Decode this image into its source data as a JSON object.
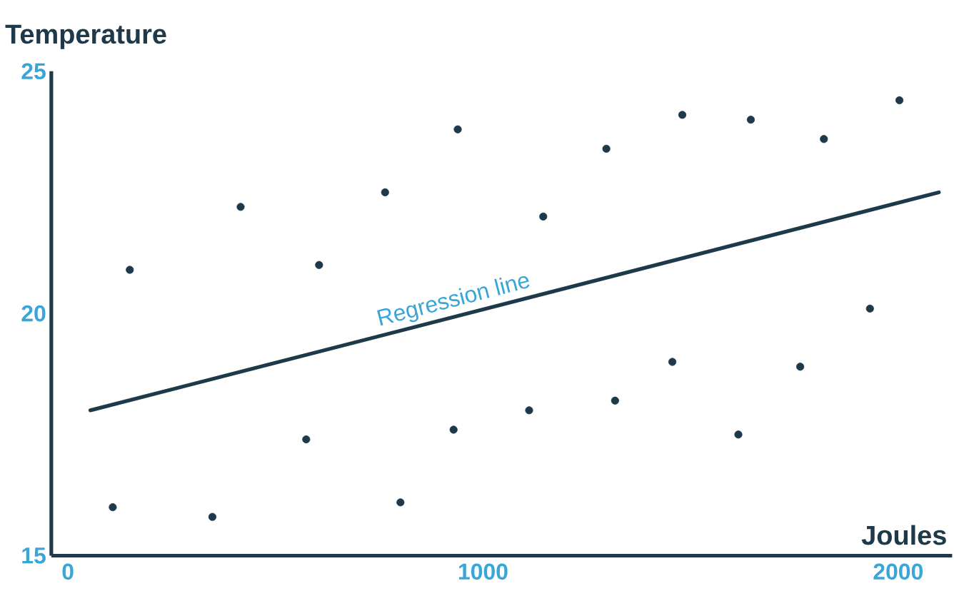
{
  "chart_data": {
    "type": "scatter",
    "xlabel": "Joules",
    "ylabel": "Temperature",
    "xlim": [
      -40,
      2130
    ],
    "ylim": [
      15,
      25
    ],
    "xticks": [
      0,
      1000,
      2000
    ],
    "yticks": [
      15,
      20,
      25
    ],
    "grid": false,
    "series": [
      {
        "marker": "circle",
        "color": "#1e3a4a",
        "x": [
          108,
          149,
          348,
          416,
          574,
          605,
          764,
          801,
          929,
          939,
          1111,
          1145,
          1297,
          1318,
          1456,
          1480,
          1615,
          1645,
          1764,
          1821,
          1932,
          2003
        ],
        "values": [
          16.0,
          20.9,
          15.8,
          22.2,
          17.4,
          21.0,
          22.5,
          16.1,
          17.6,
          23.8,
          18.0,
          22.0,
          23.4,
          18.2,
          19.0,
          24.1,
          17.5,
          24.0,
          18.9,
          23.6,
          20.1,
          24.4
        ]
      },
      {
        "type": "line",
        "color": "#1e3a4a",
        "marker": "none",
        "line_style": "solid",
        "x": [
          54,
          2098
        ],
        "values": [
          18.0,
          22.5
        ]
      }
    ],
    "annotations": [
      {
        "text": "Regression line",
        "x": 939,
        "y": 19.95
      }
    ]
  }
}
